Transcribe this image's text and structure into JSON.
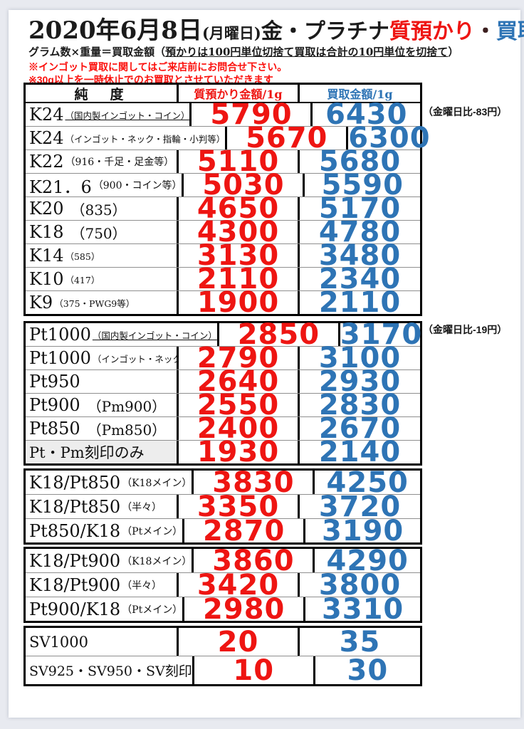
{
  "header": {
    "date": "2020年6月8日",
    "weekday": "(月曜日)",
    "metals": "金・プラチナ",
    "pawn_word": "質預かり",
    "separator": "・",
    "buy_word": "買取価格",
    "formula_prefix": "グラム数×重量＝買取金額（",
    "formula_underlined": "預かりは100円単位切捨て買取は合計の10円単位を切捨て",
    "formula_suffix": "）",
    "notice1": "※インゴット買取に関してはご来店前にお問合せ下さい。",
    "notice2": "※30g以上を一時休止でのお買取とさせていただきます"
  },
  "table": {
    "columns": {
      "purity": "純　度",
      "pawn": "質預かり金額/1g",
      "buy": "買取金額/1g"
    },
    "sections": [
      {
        "rows": [
          {
            "label": "K24",
            "sub": "（国内製インゴット・コイン）",
            "pawn": "5790",
            "buy": "6430"
          },
          {
            "label": "K24",
            "sub": "（インゴット・ネック・指輪・小判等）",
            "pawn": "5670",
            "buy": "6300"
          },
          {
            "label": "K22",
            "sub": "（916・千足・足金等）",
            "pawn": "5110",
            "buy": "5680"
          },
          {
            "label": "K21．6",
            "sub": "（900・コイン等）",
            "pawn": "5030",
            "buy": "5590"
          },
          {
            "label": "K20",
            "sub": "（835）",
            "pawn": "4650",
            "buy": "5170"
          },
          {
            "label": "K18",
            "sub": "（750）",
            "pawn": "4300",
            "buy": "4780"
          },
          {
            "label": "K14",
            "sub": "（585）",
            "pawn": "3130",
            "buy": "3480"
          },
          {
            "label": "K10",
            "sub": "（417）",
            "pawn": "2110",
            "buy": "2340"
          },
          {
            "label": "K9",
            "sub": "（375・PWG9等）",
            "pawn": "1900",
            "buy": "2110"
          }
        ]
      },
      {
        "rows": [
          {
            "label": "Pt1000",
            "sub": "（国内製インゴット・コイン）",
            "pawn": "2850",
            "buy": "3170"
          },
          {
            "label": "Pt1000",
            "sub": "（インゴット・ネック・指輪・小判",
            "pawn": "2790",
            "buy": "3100"
          },
          {
            "label": "Pt950",
            "sub": "",
            "pawn": "2640",
            "buy": "2930"
          },
          {
            "label": "Pt900",
            "sub": "（Pm900）",
            "pawn": "2550",
            "buy": "2830"
          },
          {
            "label": "Pt850",
            "sub": "（Pm850）",
            "pawn": "2400",
            "buy": "2670"
          },
          {
            "label": "Pt・Pm刻印のみ",
            "sub": "",
            "pawn": "1930",
            "buy": "2140"
          }
        ]
      },
      {
        "rows": [
          {
            "label": "K18/Pt850",
            "sub": "（K18メイン）",
            "pawn": "3830",
            "buy": "4250"
          },
          {
            "label": "K18/Pt850",
            "sub": "（半々）",
            "pawn": "3350",
            "buy": "3720"
          },
          {
            "label": "Pt850/K18",
            "sub": "（Ptメイン）",
            "pawn": "2870",
            "buy": "3190"
          }
        ]
      },
      {
        "rows": [
          {
            "label": "K18/Pt900",
            "sub": "（K18メイン）",
            "pawn": "3860",
            "buy": "4290"
          },
          {
            "label": "K18/Pt900",
            "sub": "（半々）",
            "pawn": "3420",
            "buy": "3800"
          },
          {
            "label": "Pt900/K18",
            "sub": "（Ptメイン）",
            "pawn": "2980",
            "buy": "3310"
          }
        ]
      },
      {
        "rows": [
          {
            "label": "SV1000",
            "sub": "",
            "pawn": "20",
            "buy": "35"
          },
          {
            "label": "SV925・SV950・SV刻印",
            "sub": "",
            "pawn": "10",
            "buy": "30"
          }
        ]
      }
    ]
  },
  "annotations": {
    "gold_diff": "（金曜日比-83円）",
    "platinum_diff": "（金曜日比-19円）"
  },
  "colors": {
    "price_red": "#ee1512",
    "price_blue": "#2e74b5",
    "notice_red": "#fb100c"
  }
}
